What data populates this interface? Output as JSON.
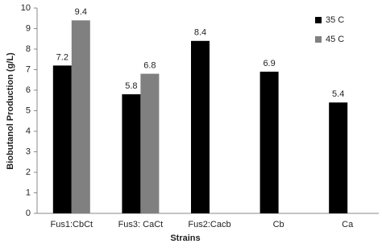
{
  "chart_data": {
    "type": "bar",
    "x_label": "Strains",
    "y_label": "Biobutanol Production (g/L)",
    "categories": [
      "Fus1:CbCt",
      "Fus3: CaCt",
      "Fus2:Cacb",
      "Cb",
      "Ca"
    ],
    "series": [
      {
        "name": "35 C",
        "color": "#000000",
        "values": [
          7.2,
          5.8,
          8.4,
          6.9,
          5.4
        ]
      },
      {
        "name": "45 C",
        "color": "#808080",
        "values": [
          9.4,
          6.8,
          null,
          null,
          null
        ]
      }
    ],
    "ylim": [
      0,
      10
    ],
    "yticks": [
      0,
      1,
      2,
      3,
      4,
      5,
      6,
      7,
      8,
      9,
      10
    ],
    "grid": false,
    "legend": "top-right"
  }
}
